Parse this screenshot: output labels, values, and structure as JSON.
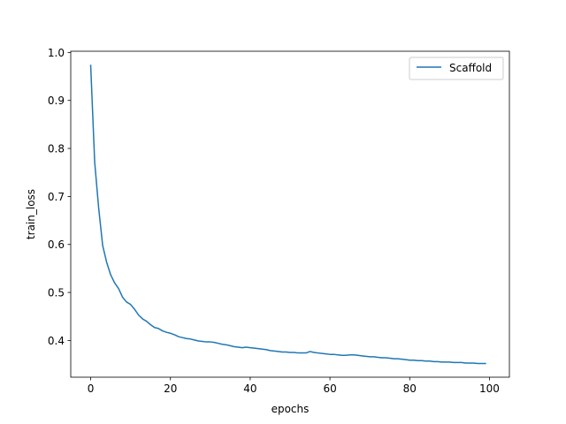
{
  "chart_data": {
    "type": "line",
    "title": "",
    "xlabel": "epochs",
    "ylabel": "train_loss",
    "xlim": [
      -5,
      105
    ],
    "ylim": [
      0.3235,
      1.0025
    ],
    "xticks": [
      0,
      20,
      40,
      60,
      80,
      100
    ],
    "yticks": [
      0.4,
      0.5,
      0.6,
      0.7,
      0.8,
      0.9,
      1.0
    ],
    "xtick_labels": [
      "0",
      "20",
      "40",
      "60",
      "80",
      "100"
    ],
    "ytick_labels": [
      "0.4",
      "0.5",
      "0.6",
      "0.7",
      "0.8",
      "0.9",
      "1.0"
    ],
    "grid": false,
    "legend_position": "upper right",
    "series": [
      {
        "name": "Scaffold",
        "color": "#1f77b4",
        "x": [
          0,
          1,
          2,
          3,
          4,
          5,
          6,
          7,
          8,
          9,
          10,
          11,
          12,
          13,
          14,
          15,
          16,
          17,
          18,
          19,
          20,
          21,
          22,
          23,
          24,
          25,
          26,
          27,
          28,
          29,
          30,
          31,
          32,
          33,
          34,
          35,
          36,
          37,
          38,
          39,
          40,
          41,
          42,
          43,
          44,
          45,
          46,
          47,
          48,
          49,
          50,
          51,
          52,
          53,
          54,
          55,
          56,
          57,
          58,
          59,
          60,
          61,
          62,
          63,
          64,
          65,
          66,
          67,
          68,
          69,
          70,
          71,
          72,
          73,
          74,
          75,
          76,
          77,
          78,
          79,
          80,
          81,
          82,
          83,
          84,
          85,
          86,
          87,
          88,
          89,
          90,
          91,
          92,
          93,
          94,
          95,
          96,
          97,
          98,
          99
        ],
        "y": [
          0.973,
          0.772,
          0.676,
          0.598,
          0.563,
          0.537,
          0.52,
          0.508,
          0.49,
          0.48,
          0.475,
          0.465,
          0.453,
          0.445,
          0.44,
          0.433,
          0.427,
          0.425,
          0.42,
          0.417,
          0.415,
          0.412,
          0.408,
          0.406,
          0.404,
          0.403,
          0.401,
          0.399,
          0.398,
          0.397,
          0.397,
          0.396,
          0.394,
          0.392,
          0.391,
          0.389,
          0.387,
          0.386,
          0.385,
          0.386,
          0.385,
          0.384,
          0.383,
          0.382,
          0.381,
          0.379,
          0.378,
          0.377,
          0.376,
          0.376,
          0.375,
          0.375,
          0.374,
          0.374,
          0.374,
          0.377,
          0.375,
          0.374,
          0.373,
          0.372,
          0.371,
          0.371,
          0.37,
          0.369,
          0.369,
          0.37,
          0.37,
          0.369,
          0.368,
          0.367,
          0.366,
          0.366,
          0.365,
          0.364,
          0.364,
          0.363,
          0.362,
          0.362,
          0.361,
          0.36,
          0.359,
          0.359,
          0.358,
          0.358,
          0.357,
          0.357,
          0.356,
          0.356,
          0.355,
          0.355,
          0.355,
          0.354,
          0.354,
          0.354,
          0.353,
          0.353,
          0.353,
          0.352,
          0.352,
          0.352
        ]
      }
    ]
  }
}
